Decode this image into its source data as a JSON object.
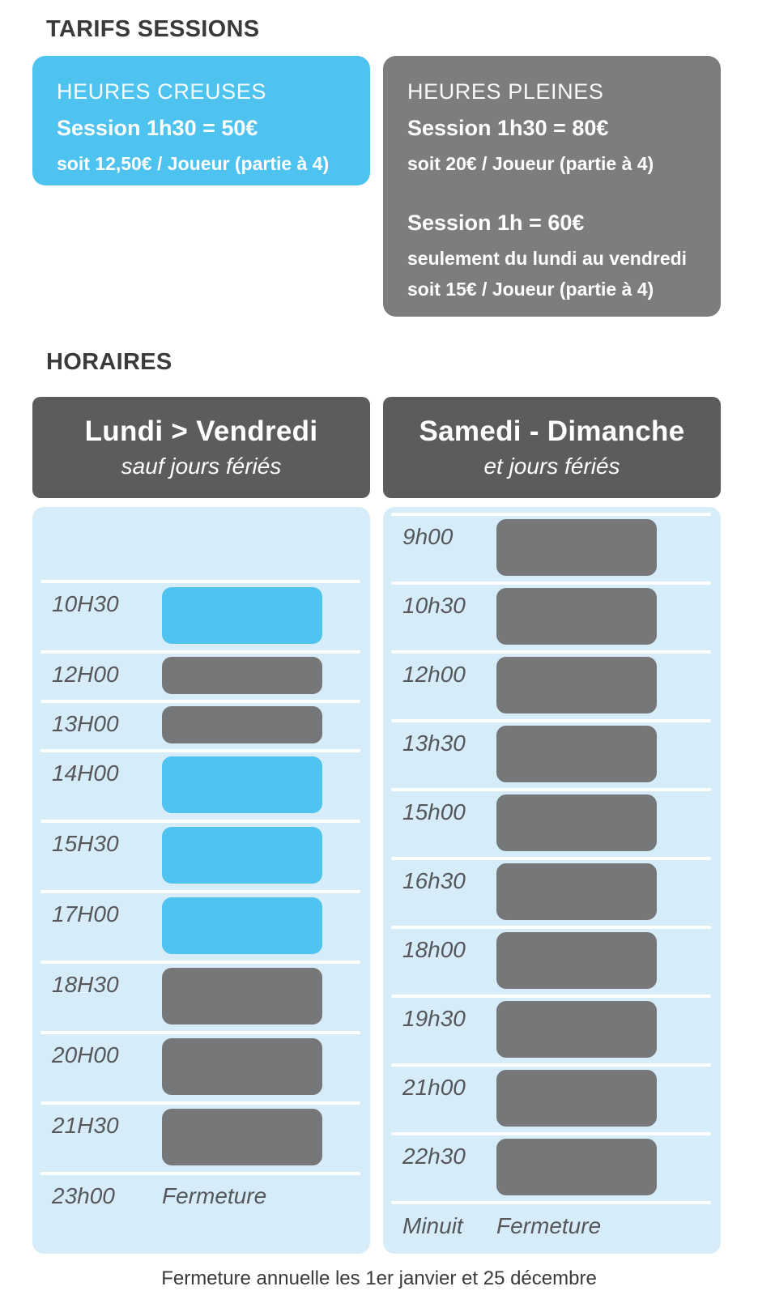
{
  "page": {
    "tarifs_title": "TARIFS SESSIONS",
    "horaires_title": "HORAIRES",
    "footer_note": "Fermeture annuelle les 1er janvier et 25 décembre"
  },
  "pricing": {
    "off_peak": {
      "label": "HEURES CREUSES",
      "price": "Session 1h30 = 50€",
      "detail": "soit 12,50€ / Joueur (partie à 4)"
    },
    "peak": {
      "label": "HEURES PLEINES",
      "session_1h30": {
        "price": "Session 1h30 = 80€",
        "detail": "soit 20€ / Joueur (partie à 4)"
      },
      "session_1h": {
        "price": "Session 1h = 60€",
        "detail1": "seulement du lundi au vendredi",
        "detail2": "soit 15€ / Joueur (partie à 4)"
      }
    }
  },
  "schedule": {
    "weekday": {
      "title": "Lundi > Vendredi",
      "subtitle": "sauf jours fériés",
      "rows": [
        {
          "time": "",
          "session": null,
          "spacer": true
        },
        {
          "time": "10H30",
          "session": "off_peak",
          "duration": "1h30"
        },
        {
          "time": "12H00",
          "session": "peak",
          "duration": "1h"
        },
        {
          "time": "13H00",
          "session": "peak",
          "duration": "1h"
        },
        {
          "time": "14H00",
          "session": "off_peak",
          "duration": "1h30"
        },
        {
          "time": "15H30",
          "session": "off_peak",
          "duration": "1h30"
        },
        {
          "time": "17H00",
          "session": "off_peak",
          "duration": "1h30"
        },
        {
          "time": "18H30",
          "session": "peak",
          "duration": "1h30"
        },
        {
          "time": "20H00",
          "session": "peak",
          "duration": "1h30"
        },
        {
          "time": "21H30",
          "session": "peak",
          "duration": "1h30"
        },
        {
          "time": "23h00",
          "session": null,
          "note": "Fermeture"
        }
      ]
    },
    "weekend": {
      "title": "Samedi - Dimanche",
      "subtitle": "et jours fériés",
      "rows": [
        {
          "time": "9h00",
          "session": "peak",
          "duration": "1h30"
        },
        {
          "time": "10h30",
          "session": "peak",
          "duration": "1h30"
        },
        {
          "time": "12h00",
          "session": "peak",
          "duration": "1h30"
        },
        {
          "time": "13h30",
          "session": "peak",
          "duration": "1h30"
        },
        {
          "time": "15h00",
          "session": "peak",
          "duration": "1h30"
        },
        {
          "time": "16h30",
          "session": "peak",
          "duration": "1h30"
        },
        {
          "time": "18h00",
          "session": "peak",
          "duration": "1h30"
        },
        {
          "time": "19h30",
          "session": "peak",
          "duration": "1h30"
        },
        {
          "time": "21h00",
          "session": "peak",
          "duration": "1h30"
        },
        {
          "time": "22h30",
          "session": "peak",
          "duration": "1h30"
        },
        {
          "time": "Minuit",
          "session": null,
          "note": "Fermeture"
        }
      ]
    }
  },
  "colors": {
    "accent_blue": "#4ec3ef",
    "panel_blue": "#d7ecf9",
    "bar_gray": "#767779",
    "header_gray": "#5d5b5c",
    "card_gray": "#7e7c7d",
    "ink": "#3a3a3c",
    "time_gray": "#55575b"
  }
}
